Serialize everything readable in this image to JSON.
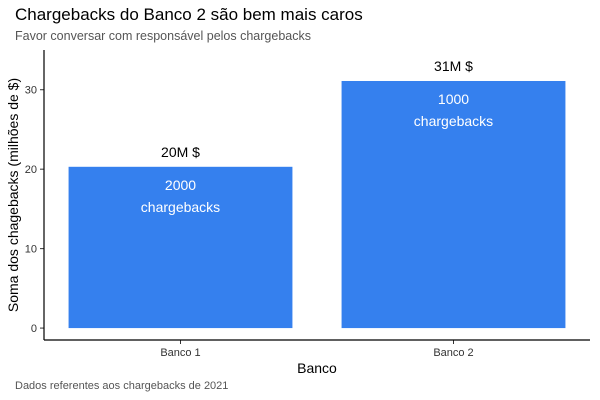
{
  "chart_data": {
    "type": "bar",
    "title": "Chargebacks do Banco 2 são bem mais caros",
    "subtitle": "Favor conversar com responsável pelos chargebacks",
    "caption": "Dados referentes aos chargebacks de 2021",
    "xlabel": "Banco",
    "ylabel": "Soma dos chagebacks (milhões de $)",
    "categories": [
      "Banco 1",
      "Banco 2"
    ],
    "values": [
      20.3,
      31.1
    ],
    "value_labels": [
      "20M $",
      "31M $"
    ],
    "count_labels": [
      [
        "2000",
        "chargebacks"
      ],
      [
        "1000",
        "chargebacks"
      ]
    ],
    "yticks": [
      0,
      10,
      20,
      30
    ],
    "ylim": [
      -1.5,
      35
    ],
    "grid": false,
    "bar_color": "#3580EE"
  }
}
